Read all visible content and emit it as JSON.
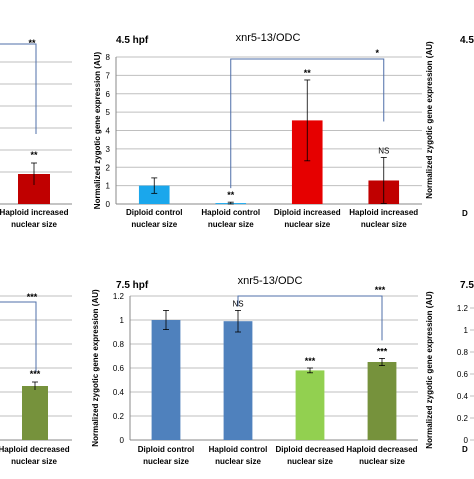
{
  "chart_data": [
    {
      "type": "bar",
      "title": "xnr5-13/ODC",
      "stage": "4.5 hpf",
      "ylabel": "Normalized zygotic gene expression (AU)",
      "ylim": [
        0,
        8
      ],
      "yticks": [
        "0",
        "1",
        "2",
        "3",
        "4",
        "5",
        "6",
        "7",
        "8"
      ],
      "grid": true,
      "categories": [
        "Diploid control nuclear size",
        "Haploid control nuclear size",
        "Diploid increased nuclear size",
        "Haploid increased nuclear size"
      ],
      "category_lines": [
        [
          "Diploid control",
          "nuclear size"
        ],
        [
          "Haploid control",
          "nuclear size"
        ],
        [
          "Diploid increased",
          "nuclear size"
        ],
        [
          "Haploid increased",
          "nuclear size"
        ]
      ],
      "values": [
        1.0,
        0.05,
        4.55,
        1.28
      ],
      "errors": [
        0.42,
        0.05,
        2.2,
        1.25
      ],
      "colors": [
        "#1aa7ec",
        "#1aa7ec",
        "#e60000",
        "#c00000"
      ],
      "significance": [
        "",
        "**",
        "**",
        "NS"
      ],
      "brackets": [
        {
          "from": 1,
          "to": 3,
          "label": "*"
        }
      ]
    },
    {
      "type": "bar",
      "title": "xnr5-13/ODC",
      "stage": "7.5 hpf",
      "ylabel": "Normalized zygotic gene expression (AU)",
      "ylim": [
        0,
        1.2
      ],
      "yticks": [
        "0",
        "0.2",
        "0.4",
        "0.6",
        "0.8",
        "1",
        "1.2"
      ],
      "grid": true,
      "categories": [
        "Diploid control nuclear size",
        "Haploid control nuclear size",
        "Diploid decreased nuclear size",
        "Haploid decreased nuclear size"
      ],
      "category_lines": [
        [
          "Diploid control",
          "nuclear size"
        ],
        [
          "Haploid control",
          "nuclear size"
        ],
        [
          "Diploid decreased",
          "nuclear size"
        ],
        [
          "Haploid decreased",
          "nuclear size"
        ]
      ],
      "values": [
        1.0,
        0.99,
        0.58,
        0.65
      ],
      "errors": [
        0.08,
        0.09,
        0.02,
        0.03
      ],
      "colors": [
        "#4f81bd",
        "#4f81bd",
        "#92d050",
        "#76923c"
      ],
      "significance": [
        "",
        "NS",
        "***",
        "***"
      ],
      "brackets": [
        {
          "from": 1,
          "to": 3,
          "label": "***"
        }
      ]
    }
  ],
  "left_partial": {
    "top": {
      "bracket_label": "**",
      "bar_label": "**",
      "bar_color": "#c00000",
      "category_lines": [
        "Haploid increased",
        "nuclear size"
      ]
    },
    "bottom": {
      "bracket_label": "***",
      "bar_label": "***",
      "bar_color": "#76923c",
      "category_lines": [
        "Haploid decreased",
        "nuclear size"
      ]
    }
  },
  "right_partial": {
    "top": {
      "stage": "4.5",
      "tick_label": "D"
    },
    "bottom": {
      "stage": "7.5",
      "yticks": [
        "0",
        "0.2",
        "0.4",
        "0.6",
        "0.8",
        "1",
        "1.2"
      ],
      "ylabel": "Normalized zygotic gene expression (AU)",
      "tick_label": "D"
    }
  }
}
